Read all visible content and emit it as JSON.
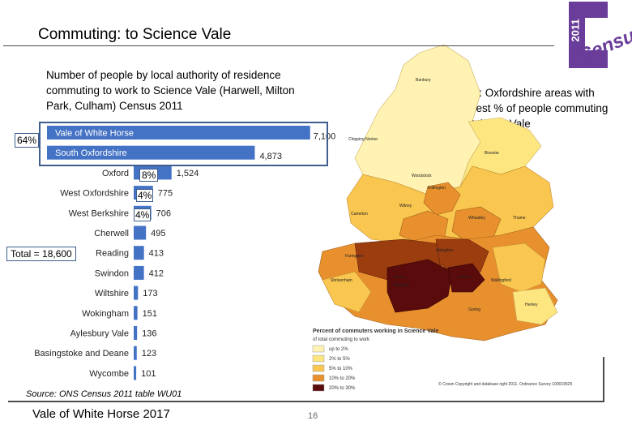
{
  "slide": {
    "title": "Commuting: to Science Vale",
    "subtitle": "Number of people by local authority of residence commuting to work to Science Vale (Harwell, Milton Park, Culham) Census 2011",
    "map_caption": "MAP: Oxfordshire areas with highest % of people commuting to Science Vale",
    "source": "Source: ONS Census 2011 table WU01",
    "footer": "Vale of White Horse 2017",
    "page_number": "16"
  },
  "logo": {
    "year": "2011",
    "word": "Census"
  },
  "annotations": {
    "group_pct": "64%",
    "total": "Total = 18,600",
    "oxford_pct": "8%",
    "west_oxon_pct": "4%",
    "west_berks_pct": "4%"
  },
  "colors": {
    "bar": "#4472c4",
    "highlight_border": "#3f5e8c",
    "map_c1": "#fff2b2",
    "map_c2": "#fde680",
    "map_c3": "#f9c64f",
    "map_c4": "#e8902e",
    "map_c5": "#9c3d10",
    "map_c6": "#5a0b0b"
  },
  "map": {
    "legend_title": "Percent of commuters working in Science Vale",
    "legend_subtitle": "of total commuting to work",
    "legend_items": [
      "up to 2%",
      "2% to 5%",
      "5% to 10%",
      "10% to 20%",
      "20% to 30%"
    ],
    "copyright": "© Crown Copyright and database right 2011. Ordnance Survey 100019525",
    "places": [
      "Banbury",
      "Chipping Norton",
      "Bicester",
      "Woodstock",
      "Kidlington",
      "Witney",
      "Carterton",
      "Thame",
      "Wheatley",
      "Abingdon",
      "Faringdon",
      "Didcot",
      "Wantage",
      "Grove",
      "Wallingford",
      "Henley",
      "Goring",
      "Shrivenham"
    ]
  },
  "chart_data": {
    "type": "bar",
    "orientation": "horizontal",
    "title": "Number of people by local authority of residence commuting to work to Science Vale (Harwell, Milton Park, Culham) Census 2011",
    "categories": [
      "Vale of White Horse",
      "South Oxfordshire",
      "Oxford",
      "West Oxfordshire",
      "West Berkshire",
      "Cherwell",
      "Reading",
      "Swindon",
      "Wiltshire",
      "Wokingham",
      "Aylesbury Vale",
      "Basingstoke and Deane",
      "Wycombe"
    ],
    "values": [
      7100,
      4873,
      1524,
      775,
      706,
      495,
      413,
      412,
      173,
      151,
      136,
      123,
      101
    ],
    "value_labels": [
      "7,100",
      "4,873",
      "1,524",
      "775",
      "706",
      "495",
      "413",
      "412",
      "173",
      "151",
      "136",
      "123",
      "101"
    ],
    "xlim": [
      0,
      7500
    ],
    "xlabel": "",
    "ylabel": ""
  }
}
